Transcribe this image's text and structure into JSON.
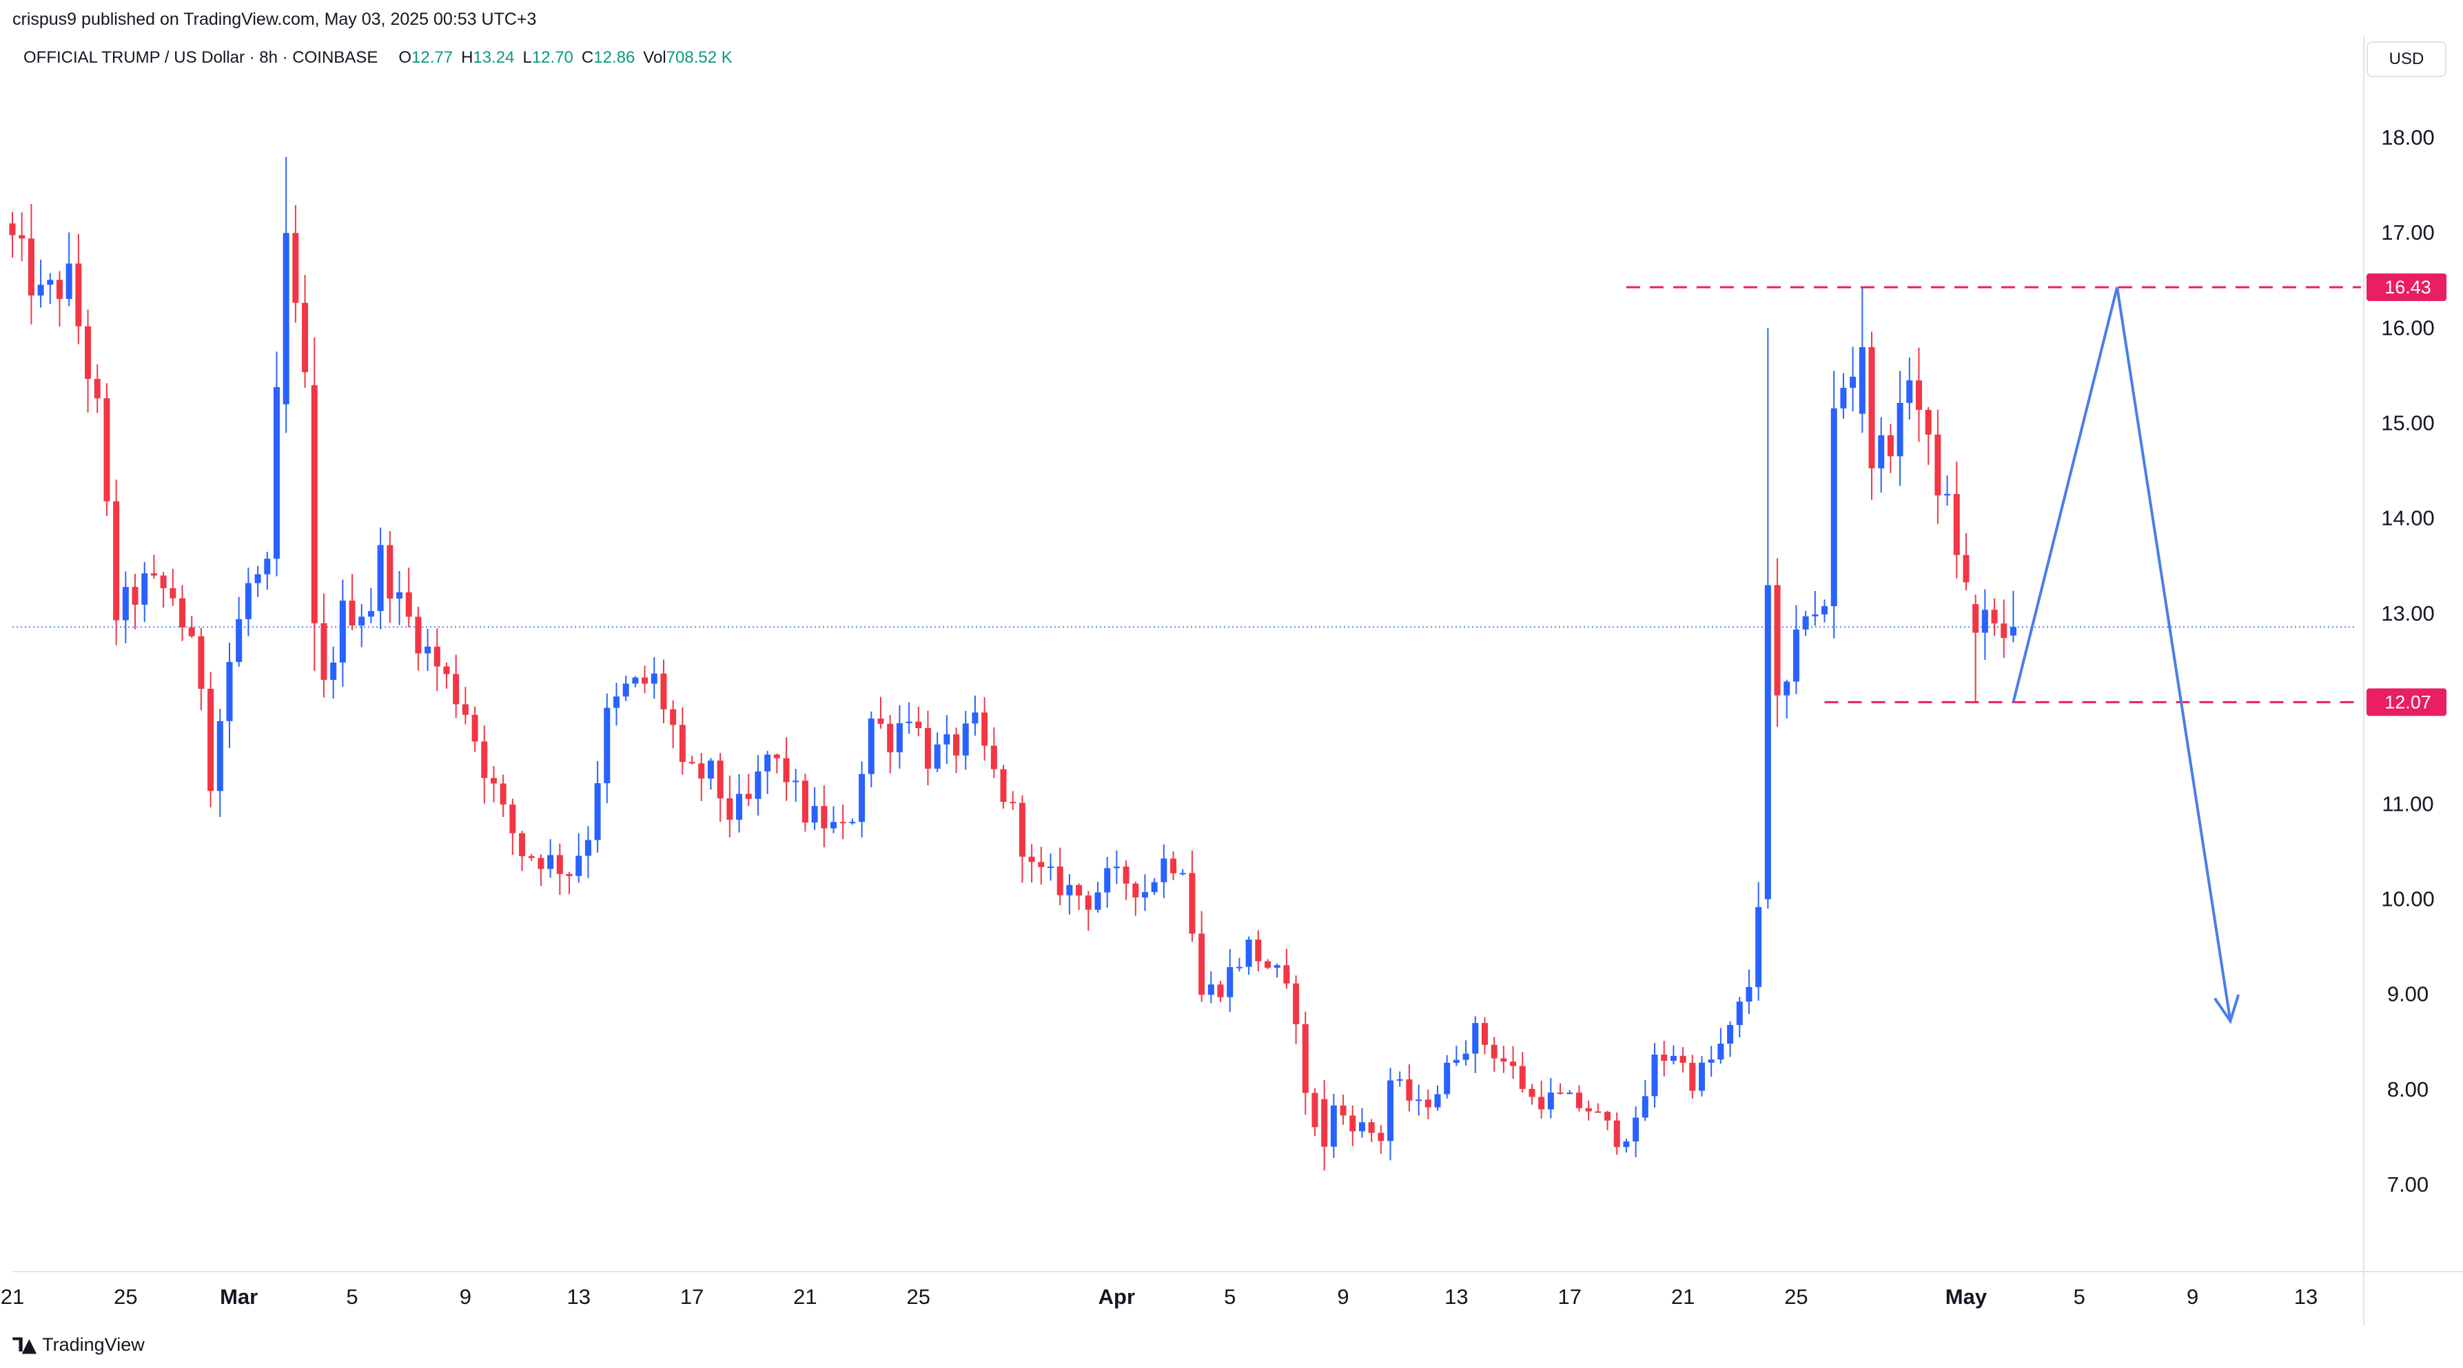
{
  "header": {
    "published_by": "crispus9 published on TradingView.com, May 03, 2025 00:53 UTC+3",
    "symbol": "OFFICIAL TRUMP / US Dollar · 8h · COINBASE",
    "ohlcv": [
      {
        "key": "O",
        "value": "12.77"
      },
      {
        "key": "H",
        "value": "13.24"
      },
      {
        "key": "L",
        "value": "12.70"
      },
      {
        "key": "C",
        "value": "12.86"
      },
      {
        "key": "Vol",
        "value": "708.52 K"
      }
    ],
    "currency_button": "USD"
  },
  "footer": {
    "brand_icon": "tradingview-logo-icon",
    "brand": "TradingView"
  },
  "colors": {
    "up": "#2962ff",
    "down": "#f23645",
    "level": "#e91e63",
    "projection": "#4a7ee8",
    "last_price_line": "#2962ff",
    "grid_text": "#131722"
  },
  "chart_data": {
    "type": "candlestick",
    "timeframe": "8h",
    "ylim": [
      6.3,
      18.8
    ],
    "y_ticks": [
      "7.00",
      "8.00",
      "9.00",
      "10.00",
      "11.00",
      "12.00",
      "13.00",
      "14.00",
      "15.00",
      "16.00",
      "17.00",
      "18.00"
    ],
    "x_ticks": [
      {
        "label": "21",
        "date": "2025-02-21"
      },
      {
        "label": "25",
        "date": "2025-02-25"
      },
      {
        "label": "Mar",
        "date": "2025-03-01",
        "bold": true
      },
      {
        "label": "5",
        "date": "2025-03-05"
      },
      {
        "label": "9",
        "date": "2025-03-09"
      },
      {
        "label": "13",
        "date": "2025-03-13"
      },
      {
        "label": "17",
        "date": "2025-03-17"
      },
      {
        "label": "21",
        "date": "2025-03-21"
      },
      {
        "label": "25",
        "date": "2025-03-25"
      },
      {
        "label": "Apr",
        "date": "2025-04-01",
        "bold": true
      },
      {
        "label": "5",
        "date": "2025-04-05"
      },
      {
        "label": "9",
        "date": "2025-04-09"
      },
      {
        "label": "13",
        "date": "2025-04-13"
      },
      {
        "label": "17",
        "date": "2025-04-17"
      },
      {
        "label": "21",
        "date": "2025-04-21"
      },
      {
        "label": "25",
        "date": "2025-04-25"
      },
      {
        "label": "May",
        "date": "2025-05-01",
        "bold": true
      },
      {
        "label": "5",
        "date": "2025-05-05"
      },
      {
        "label": "9",
        "date": "2025-05-09"
      },
      {
        "label": "13",
        "date": "2025-05-13"
      }
    ],
    "last_price": 12.86,
    "levels": [
      {
        "label": "16.43",
        "value": 16.43,
        "from": "2025-04-19",
        "to": "2025-05-24"
      },
      {
        "label": "12.07",
        "value": 12.07,
        "from": "2025-04-26",
        "to": "2025-05-24"
      }
    ],
    "projection_path": [
      {
        "date": "2025-05-02T16:00",
        "value": 12.07
      },
      {
        "date": "2025-05-06T08:00",
        "value": 16.43
      },
      {
        "date": "2025-05-10T08:00",
        "value": 8.72
      }
    ],
    "close_path": [
      {
        "date": "2025-02-21T00:00",
        "value": 16.9
      },
      {
        "date": "2025-02-22T00:00",
        "value": 16.3
      },
      {
        "date": "2025-02-23T00:00",
        "value": 16.5
      },
      {
        "date": "2025-02-24T00:00",
        "value": 15.1
      },
      {
        "date": "2025-02-24T16:00",
        "value": 13.0
      },
      {
        "date": "2025-02-25T16:00",
        "value": 13.3
      },
      {
        "date": "2025-02-26T16:00",
        "value": 13.2
      },
      {
        "date": "2025-02-27T16:00",
        "value": 12.3
      },
      {
        "date": "2025-02-28T00:00",
        "value": 11.3
      },
      {
        "date": "2025-02-28T16:00",
        "value": 12.5
      },
      {
        "date": "2025-03-01T08:00",
        "value": 13.3
      },
      {
        "date": "2025-03-02T00:00",
        "value": 13.4
      },
      {
        "date": "2025-03-02T08:00",
        "value": 15.2
      },
      {
        "date": "2025-03-02T16:00",
        "value": 17.0
      },
      {
        "date": "2025-03-03T08:00",
        "value": 15.4
      },
      {
        "date": "2025-03-03T16:00",
        "value": 12.9
      },
      {
        "date": "2025-03-04T00:00",
        "value": 12.2
      },
      {
        "date": "2025-03-04T16:00",
        "value": 13.0
      },
      {
        "date": "2025-03-05T16:00",
        "value": 13.1
      },
      {
        "date": "2025-03-06T00:00",
        "value": 13.6
      },
      {
        "date": "2025-03-06T16:00",
        "value": 13.1
      },
      {
        "date": "2025-03-07T16:00",
        "value": 12.6
      },
      {
        "date": "2025-03-08T08:00",
        "value": 12.3
      },
      {
        "date": "2025-03-09T00:00",
        "value": 12.0
      },
      {
        "date": "2025-03-09T16:00",
        "value": 11.4
      },
      {
        "date": "2025-03-10T08:00",
        "value": 10.9
      },
      {
        "date": "2025-03-11T00:00",
        "value": 10.5
      },
      {
        "date": "2025-03-12T00:00",
        "value": 10.4
      },
      {
        "date": "2025-03-12T16:00",
        "value": 10.3
      },
      {
        "date": "2025-03-13T08:00",
        "value": 10.7
      },
      {
        "date": "2025-03-14T00:00",
        "value": 11.9
      },
      {
        "date": "2025-03-14T16:00",
        "value": 12.2
      },
      {
        "date": "2025-03-15T16:00",
        "value": 12.3
      },
      {
        "date": "2025-03-16T08:00",
        "value": 11.8
      },
      {
        "date": "2025-03-16T16:00",
        "value": 11.3
      },
      {
        "date": "2025-03-17T16:00",
        "value": 11.3
      },
      {
        "date": "2025-03-18T08:00",
        "value": 10.9
      },
      {
        "date": "2025-03-19T00:00",
        "value": 11.0
      },
      {
        "date": "2025-03-19T16:00",
        "value": 11.5
      },
      {
        "date": "2025-03-20T08:00",
        "value": 11.3
      },
      {
        "date": "2025-03-21T00:00",
        "value": 10.9
      },
      {
        "date": "2025-03-21T16:00",
        "value": 10.8
      },
      {
        "date": "2025-03-22T08:00",
        "value": 10.7
      },
      {
        "date": "2025-03-22T16:00",
        "value": 10.9
      },
      {
        "date": "2025-03-23T08:00",
        "value": 11.9
      },
      {
        "date": "2025-03-24T00:00",
        "value": 11.7
      },
      {
        "date": "2025-03-24T16:00",
        "value": 12.0
      },
      {
        "date": "2025-03-25T08:00",
        "value": 11.5
      },
      {
        "date": "2025-03-26T08:00",
        "value": 11.6
      },
      {
        "date": "2025-03-27T00:00",
        "value": 11.8
      },
      {
        "date": "2025-03-27T16:00",
        "value": 11.3
      },
      {
        "date": "2025-03-28T08:00",
        "value": 10.9
      },
      {
        "date": "2025-03-29T00:00",
        "value": 10.3
      },
      {
        "date": "2025-03-29T16:00",
        "value": 10.2
      },
      {
        "date": "2025-03-30T08:00",
        "value": 10.1
      },
      {
        "date": "2025-03-31T00:00",
        "value": 10.0
      },
      {
        "date": "2025-03-31T16:00",
        "value": 10.2
      },
      {
        "date": "2025-04-01T08:00",
        "value": 10.2
      },
      {
        "date": "2025-04-02T00:00",
        "value": 10.1
      },
      {
        "date": "2025-04-02T16:00",
        "value": 10.4
      },
      {
        "date": "2025-04-03T08:00",
        "value": 10.4
      },
      {
        "date": "2025-04-04T00:00",
        "value": 9.0
      },
      {
        "date": "2025-04-04T16:00",
        "value": 9.1
      },
      {
        "date": "2025-04-05T16:00",
        "value": 9.5
      },
      {
        "date": "2025-04-06T16:00",
        "value": 9.2
      },
      {
        "date": "2025-04-07T08:00",
        "value": 8.8
      },
      {
        "date": "2025-04-07T16:00",
        "value": 7.9
      },
      {
        "date": "2025-04-08T08:00",
        "value": 7.4
      },
      {
        "date": "2025-04-08T16:00",
        "value": 7.8
      },
      {
        "date": "2025-04-09T16:00",
        "value": 7.6
      },
      {
        "date": "2025-04-10T08:00",
        "value": 7.5
      },
      {
        "date": "2025-04-10T16:00",
        "value": 8.1
      },
      {
        "date": "2025-04-11T16:00",
        "value": 7.8
      },
      {
        "date": "2025-04-12T08:00",
        "value": 8.0
      },
      {
        "date": "2025-04-13T00:00",
        "value": 8.4
      },
      {
        "date": "2025-04-13T16:00",
        "value": 8.6
      },
      {
        "date": "2025-04-14T08:00",
        "value": 8.4
      },
      {
        "date": "2025-04-15T00:00",
        "value": 8.2
      },
      {
        "date": "2025-04-15T16:00",
        "value": 7.9
      },
      {
        "date": "2025-04-16T16:00",
        "value": 7.9
      },
      {
        "date": "2025-04-17T16:00",
        "value": 7.8
      },
      {
        "date": "2025-04-18T16:00",
        "value": 7.5
      },
      {
        "date": "2025-04-19T08:00",
        "value": 7.6
      },
      {
        "date": "2025-04-20T00:00",
        "value": 8.3
      },
      {
        "date": "2025-04-20T16:00",
        "value": 8.4
      },
      {
        "date": "2025-04-21T08:00",
        "value": 8.1
      },
      {
        "date": "2025-04-22T00:00",
        "value": 8.3
      },
      {
        "date": "2025-04-22T16:00",
        "value": 8.6
      },
      {
        "date": "2025-04-23T08:00",
        "value": 9.1
      },
      {
        "date": "2025-04-23T16:00",
        "value": 10.0
      },
      {
        "date": "2025-04-24T00:00",
        "value": 13.3
      },
      {
        "date": "2025-04-24T08:00",
        "value": 12.0
      },
      {
        "date": "2025-04-24T16:00",
        "value": 12.2
      },
      {
        "date": "2025-04-25T08:00",
        "value": 13.1
      },
      {
        "date": "2025-04-26T00:00",
        "value": 13.0
      },
      {
        "date": "2025-04-26T08:00",
        "value": 15.1
      },
      {
        "date": "2025-04-26T16:00",
        "value": 15.4
      },
      {
        "date": "2025-04-27T08:00",
        "value": 15.8
      },
      {
        "date": "2025-04-27T16:00",
        "value": 14.6
      },
      {
        "date": "2025-04-28T16:00",
        "value": 15.0
      },
      {
        "date": "2025-04-29T00:00",
        "value": 15.6
      },
      {
        "date": "2025-04-29T16:00",
        "value": 14.7
      },
      {
        "date": "2025-04-30T08:00",
        "value": 14.1
      },
      {
        "date": "2025-04-30T16:00",
        "value": 13.7
      },
      {
        "date": "2025-05-01T08:00",
        "value": 12.8
      },
      {
        "date": "2025-05-01T16:00",
        "value": 13.1
      },
      {
        "date": "2025-05-02T08:00",
        "value": 12.6
      },
      {
        "date": "2025-05-02T16:00",
        "value": 12.86
      }
    ],
    "sample_candles": [
      {
        "date": "2025-03-02T16:00",
        "open": 15.2,
        "high": 17.8,
        "low": 14.9,
        "close": 17.0
      },
      {
        "date": "2025-03-03T16:00",
        "open": 15.4,
        "high": 15.9,
        "low": 12.4,
        "close": 12.9
      },
      {
        "date": "2025-04-08T08:00",
        "open": 7.9,
        "high": 8.1,
        "low": 7.15,
        "close": 7.4
      },
      {
        "date": "2025-04-24T00:00",
        "open": 10.0,
        "high": 16.0,
        "low": 9.9,
        "close": 13.3
      },
      {
        "date": "2025-04-27T08:00",
        "open": 15.1,
        "high": 16.43,
        "low": 14.9,
        "close": 15.8
      },
      {
        "date": "2025-05-01T08:00",
        "open": 13.1,
        "high": 13.2,
        "low": 12.07,
        "close": 12.8
      },
      {
        "date": "2025-05-02T16:00",
        "open": 12.77,
        "high": 13.24,
        "low": 12.7,
        "close": 12.86
      }
    ]
  }
}
